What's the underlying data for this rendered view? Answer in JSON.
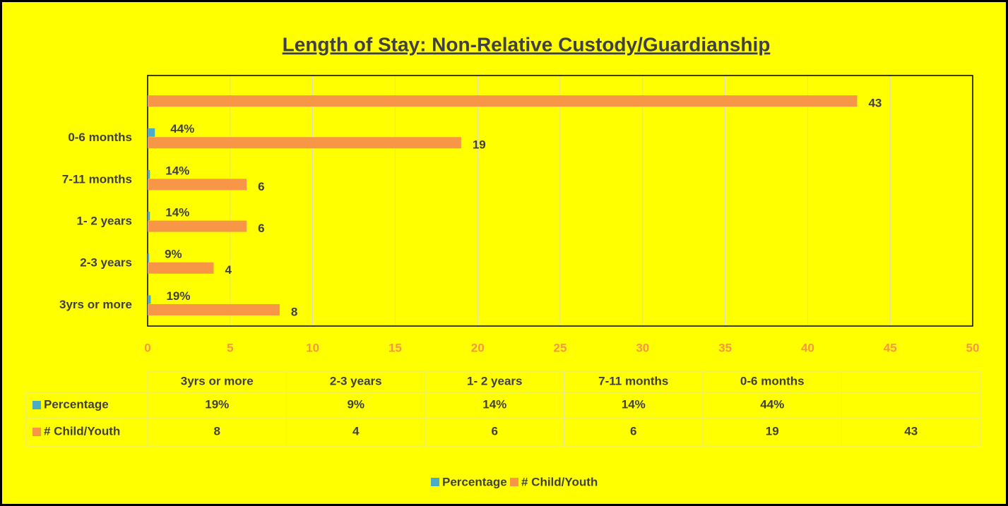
{
  "chart_data": {
    "type": "hbar",
    "title": "Length of Stay: Non-Relative Custody/Guardianship",
    "categories": [
      "3yrs or more",
      "2-3 years",
      "1- 2 years",
      "7-11 months",
      "0-6 months",
      null
    ],
    "series": [
      {
        "name": "Percentage",
        "color": "#4bacc6",
        "values": [
          0.19,
          0.09,
          0.14,
          0.14,
          0.44,
          null
        ],
        "value_labels": [
          "19%",
          "9%",
          "14%",
          "14%",
          "44%",
          null
        ]
      },
      {
        "name": "# Child/Youth",
        "color": "#f79646",
        "values": [
          8,
          4,
          6,
          6,
          19,
          43
        ]
      }
    ],
    "xlim": [
      0,
      50
    ],
    "xticks": [
      0,
      5,
      10,
      15,
      20,
      25,
      30,
      35,
      40,
      45,
      50
    ],
    "grid": true,
    "legend": "bottom",
    "data_table": true
  }
}
